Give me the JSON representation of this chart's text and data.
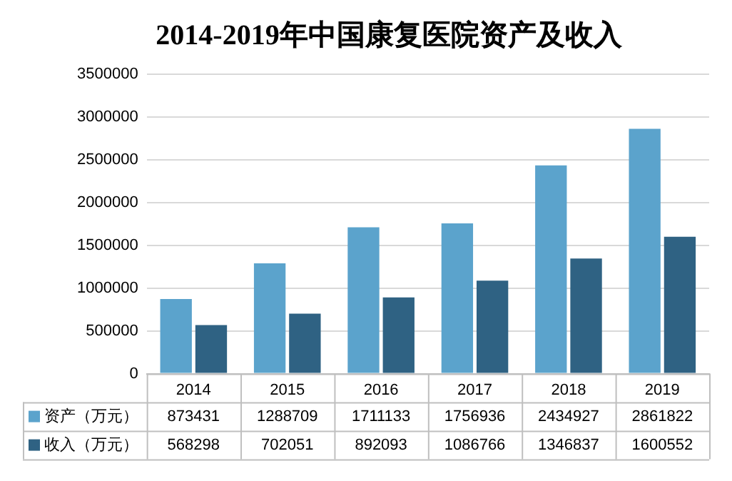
{
  "chart_data": {
    "type": "bar",
    "title": "2014-2019年中国康复医院资产及收入",
    "categories": [
      "2014",
      "2015",
      "2016",
      "2017",
      "2018",
      "2019"
    ],
    "series": [
      {
        "name": "资产（万元）",
        "color": "#5ba3cc",
        "values": [
          873431,
          1288709,
          1711133,
          1756936,
          2434927,
          2861822
        ]
      },
      {
        "name": "收入（万元）",
        "color": "#2f6283",
        "values": [
          568298,
          702051,
          892093,
          1086766,
          1346837,
          1600552
        ]
      }
    ],
    "ylim": [
      0,
      3500000
    ],
    "yticks": [
      0,
      500000,
      1000000,
      1500000,
      2000000,
      2500000,
      3000000,
      3500000
    ],
    "grid": "y",
    "legend": "bottom",
    "data_labels": true
  }
}
